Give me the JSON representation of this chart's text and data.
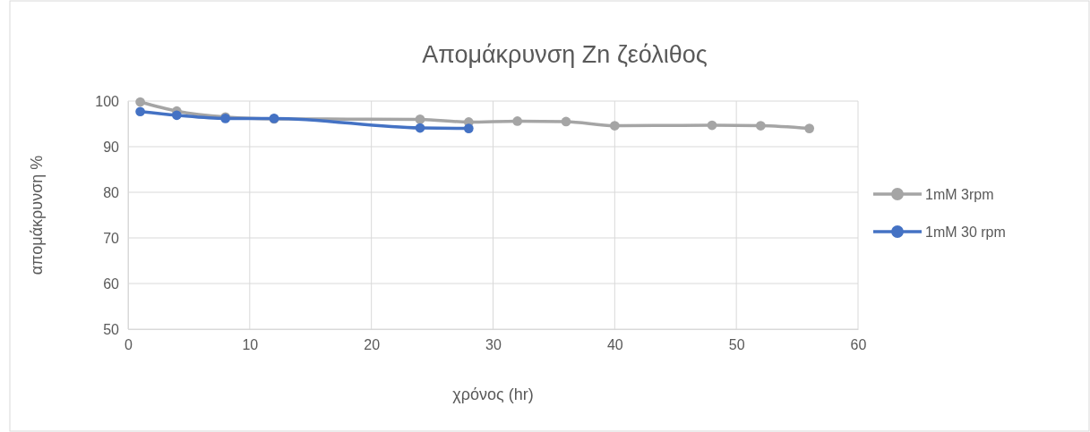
{
  "chart_data": {
    "type": "line",
    "title": "Απομάκρυνση Zn  ζεόλιθος",
    "xlabel": "χρόνος (hr)",
    "ylabel": "απομάκρυνση %",
    "xlim": [
      0,
      60
    ],
    "xticks": [
      0,
      10,
      20,
      30,
      40,
      50,
      60
    ],
    "ylim": [
      50,
      100
    ],
    "yticks": [
      50,
      60,
      70,
      80,
      90,
      100
    ],
    "grid": true,
    "legend": "right",
    "marker": "circle",
    "line_style": "solid",
    "series": [
      {
        "name": "1mM  3rpm",
        "color": "#a5a5a5",
        "x": [
          1,
          4,
          8,
          12,
          24,
          28,
          32,
          36,
          40,
          48,
          52,
          56
        ],
        "values": [
          99.8,
          97.8,
          96.5,
          96.1,
          96.0,
          95.4,
          95.6,
          95.5,
          94.6,
          94.7,
          94.6,
          94.0
        ]
      },
      {
        "name": "1mM  30 rpm",
        "color": "#4472c4",
        "x": [
          1,
          4,
          8,
          12,
          24,
          28
        ],
        "values": [
          97.7,
          96.9,
          96.2,
          96.2,
          94.1,
          94.0
        ]
      }
    ]
  }
}
